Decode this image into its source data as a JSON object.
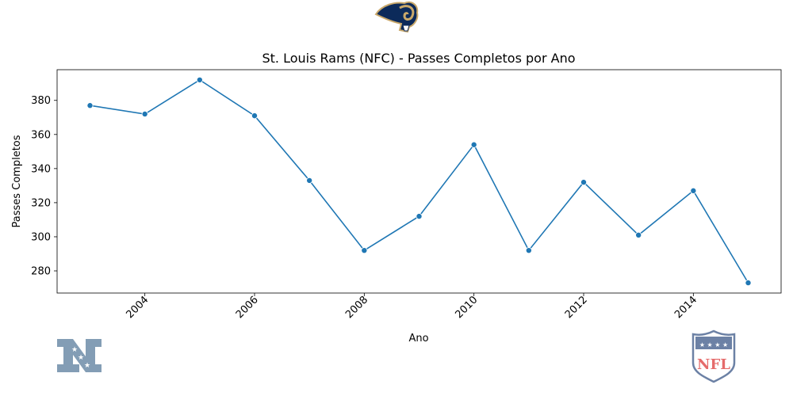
{
  "chart_data": {
    "type": "line",
    "title": "St. Louis Rams (NFC) - Passes Completos por Ano",
    "xlabel": "Ano",
    "ylabel": "Passes Completos",
    "x": [
      2003,
      2004,
      2005,
      2006,
      2007,
      2008,
      2009,
      2010,
      2011,
      2012,
      2013,
      2014,
      2015
    ],
    "series": [
      {
        "values": [
          377,
          372,
          392,
          371,
          333,
          292,
          312,
          354,
          292,
          332,
          301,
          327,
          273
        ]
      }
    ],
    "xlim": [
      2002.4,
      2015.6
    ],
    "ylim": [
      267,
      398
    ],
    "x_ticks": [
      2004,
      2006,
      2008,
      2010,
      2012,
      2014
    ],
    "y_ticks": [
      280,
      300,
      320,
      340,
      360,
      380
    ],
    "grid": false,
    "colors": {
      "line": "#1f77b4",
      "marker": "#1f77b4"
    }
  },
  "logos": {
    "team": "rams-logo",
    "conference": "nfc-logo",
    "league": "nfl-logo",
    "nfl_text": "NFL"
  }
}
